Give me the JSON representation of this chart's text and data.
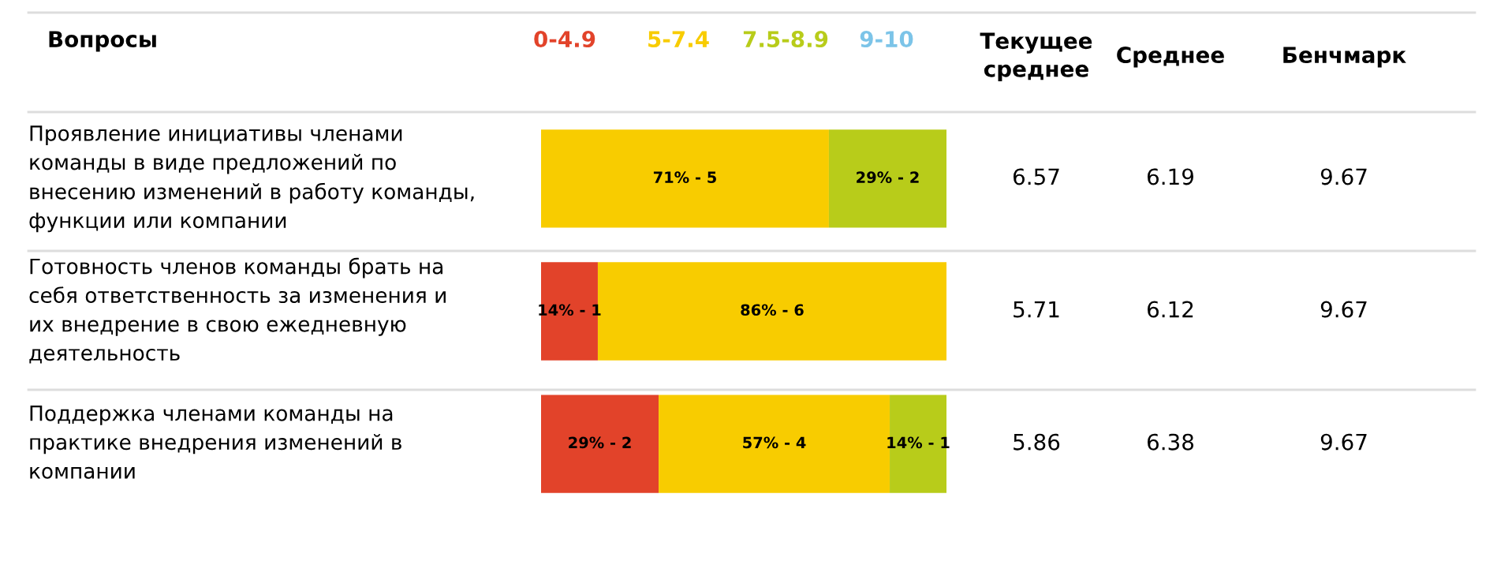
{
  "chart_data": {
    "type": "bar",
    "orientation": "horizontal",
    "stacked": true,
    "ylabel": "Вопросы",
    "categories": [
      "Проявление инициативы членами\nкоманды в виде предложений по\nвнесению изменений в работу команды,\nфункции или компании",
      "Готовность членов команды брать на\nсебя ответственность за изменения и\nих внедрение в свою ежедневную\nдеятельность",
      "Поддержка членами команды на\nпрактике внедрения изменений в\nкомпании"
    ],
    "series": [
      {
        "name": "0-4.9",
        "color": "#e2432a",
        "values": [
          null,
          14,
          29
        ],
        "value_labels": [
          null,
          "14% - 1",
          "29% - 2"
        ]
      },
      {
        "name": "5-7.4",
        "color": "#f8cc00",
        "values": [
          71,
          86,
          57
        ],
        "value_labels": [
          "71% - 5",
          "86% - 6",
          "57% - 4"
        ]
      },
      {
        "name": "7.5-8.9",
        "color": "#b8cc1a",
        "values": [
          29,
          null,
          14
        ],
        "value_labels": [
          "29% - 2",
          null,
          "14% - 1"
        ]
      },
      {
        "name": "9-10",
        "color": "#7cc4e8",
        "values": [
          null,
          null,
          null
        ],
        "value_labels": [
          null,
          null,
          null
        ]
      }
    ],
    "xlim": [
      0,
      100
    ],
    "legend": "top",
    "annotations": [
      "Текущее\nсреднее",
      "Среднее",
      "Бенчмарк",
      "6.57",
      "6.19",
      "9.67",
      "5.71",
      "6.12",
      "9.67",
      "5.86",
      "6.38",
      "9.67"
    ]
  }
}
